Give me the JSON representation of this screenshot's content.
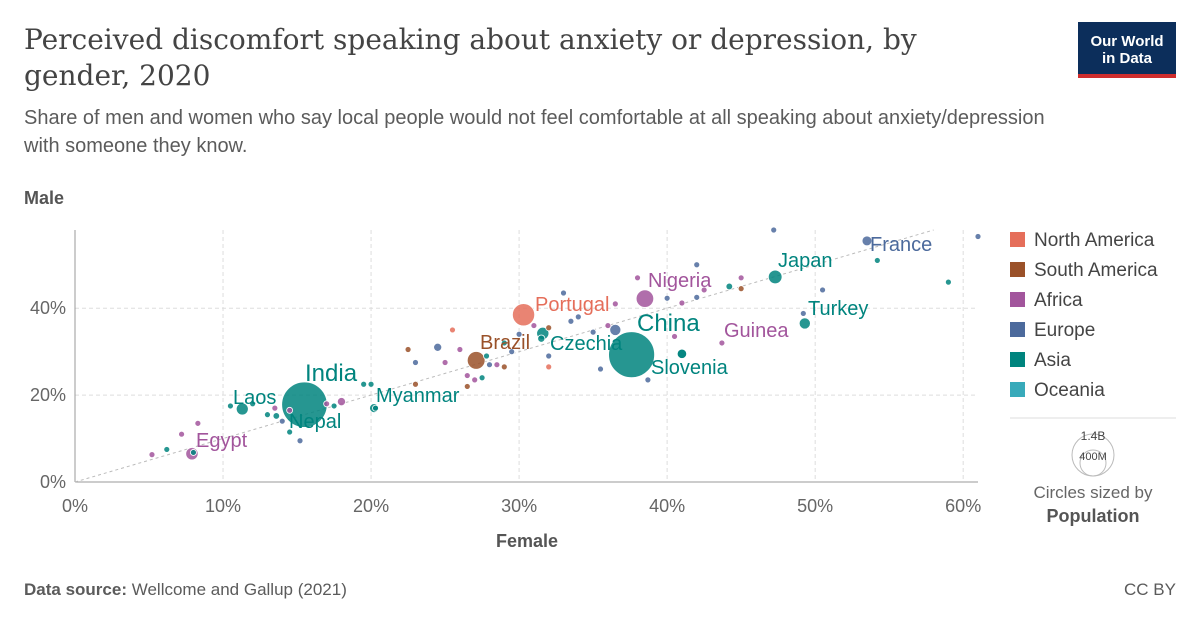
{
  "header": {
    "title": "Perceived discomfort speaking about anxiety or depression, by gender, 2020",
    "subtitle": "Share of men and women who say local people would not feel comfortable at all speaking about anxiety/depression with someone they know.",
    "logo_line1": "Our World",
    "logo_line2": "in Data"
  },
  "footer": {
    "source_label": "Data source:",
    "source_text": "Wellcome and Gallup (2021)",
    "license": "CC BY"
  },
  "colors": {
    "North America": "#e56e5a",
    "South America": "#9a5129",
    "Africa": "#a2559c",
    "Europe": "#4c6a9c",
    "Asia": "#00847e",
    "Oceania": "#38aaba"
  },
  "size_legend": {
    "big_label": "1.4B",
    "small_label": "400M",
    "caption": "Circles sized by",
    "caption_bold": "Population"
  },
  "chart_data": {
    "type": "scatter",
    "title": "Perceived discomfort speaking about anxiety or depression, by gender, 2020",
    "xlabel": "Female",
    "ylabel": "Male",
    "xlim": [
      0,
      61
    ],
    "ylim": [
      0,
      58
    ],
    "xticks": [
      "0%",
      "10%",
      "20%",
      "30%",
      "40%",
      "50%",
      "60%"
    ],
    "yticks": [
      "0%",
      "20%",
      "40%"
    ],
    "xtick_values": [
      0,
      10,
      20,
      30,
      40,
      50,
      60
    ],
    "ytick_values": [
      0,
      20,
      40
    ],
    "grid": true,
    "diagonal_reference_line": true,
    "legend": [
      "North America",
      "South America",
      "Africa",
      "Europe",
      "Asia",
      "Oceania"
    ],
    "legend_position": "right",
    "labeled_points": [
      {
        "label": "France",
        "region": "Europe",
        "x": 53.5,
        "y": 55.5,
        "pop_m": 65
      },
      {
        "label": "Japan",
        "region": "Asia",
        "x": 47.3,
        "y": 47.2,
        "pop_m": 126
      },
      {
        "label": "Nigeria",
        "region": "Africa",
        "x": 38.5,
        "y": 42.2,
        "pop_m": 206
      },
      {
        "label": "Turkey",
        "region": "Asia",
        "x": 49.3,
        "y": 36.5,
        "pop_m": 84
      },
      {
        "label": "Portugal",
        "region": "North America",
        "x": 30.3,
        "y": 38.5,
        "pop_m": 331
      },
      {
        "label": "China",
        "region": "Asia",
        "x": 37.6,
        "y": 29.3,
        "pop_m": 1411
      },
      {
        "label": "Guinea",
        "region": "Africa",
        "x": 40.5,
        "y": 33.5,
        "pop_m": 13
      },
      {
        "label": "Brazil",
        "region": "South America",
        "x": 27.1,
        "y": 28.0,
        "pop_m": 212
      },
      {
        "label": "Czechia",
        "region": "Asia",
        "x": 31.6,
        "y": 34.2,
        "pop_m": 100
      },
      {
        "label": "Slovenia",
        "region": "Asia",
        "x": 41.0,
        "y": 29.5,
        "pop_m": 60
      },
      {
        "label": "India",
        "region": "Asia",
        "x": 15.5,
        "y": 17.8,
        "pop_m": 1380
      },
      {
        "label": "Laos",
        "region": "Asia",
        "x": 11.3,
        "y": 16.8,
        "pop_m": 97
      },
      {
        "label": "Myanmar",
        "region": "Asia",
        "x": 20.2,
        "y": 17.0,
        "pop_m": 54
      },
      {
        "label": "Nepal",
        "region": "Asia",
        "x": 13.6,
        "y": 15.2,
        "pop_m": 29
      },
      {
        "label": "Egypt",
        "region": "Africa",
        "x": 7.9,
        "y": 6.5,
        "pop_m": 102
      }
    ],
    "other_points": [
      {
        "region": "Europe",
        "x": 47.2,
        "y": 58.0,
        "pop_m": 5
      },
      {
        "region": "Europe",
        "x": 61.0,
        "y": 56.5,
        "pop_m": 6
      },
      {
        "region": "Asia",
        "x": 54.2,
        "y": 51.0,
        "pop_m": 8
      },
      {
        "region": "Asia",
        "x": 59.0,
        "y": 46.0,
        "pop_m": 6
      },
      {
        "region": "Europe",
        "x": 50.5,
        "y": 44.2,
        "pop_m": 7
      },
      {
        "region": "Europe",
        "x": 49.2,
        "y": 38.8,
        "pop_m": 8
      },
      {
        "region": "Africa",
        "x": 45.0,
        "y": 47.0,
        "pop_m": 10
      },
      {
        "region": "South America",
        "x": 45.0,
        "y": 44.5,
        "pop_m": 8
      },
      {
        "region": "Asia",
        "x": 44.2,
        "y": 45.0,
        "pop_m": 30
      },
      {
        "region": "Europe",
        "x": 42.0,
        "y": 50.0,
        "pop_m": 6
      },
      {
        "region": "Africa",
        "x": 42.5,
        "y": 44.2,
        "pop_m": 6
      },
      {
        "region": "Europe",
        "x": 40.0,
        "y": 42.3,
        "pop_m": 8
      },
      {
        "region": "Africa",
        "x": 41.0,
        "y": 41.2,
        "pop_m": 8
      },
      {
        "region": "Europe",
        "x": 42.0,
        "y": 42.5,
        "pop_m": 5
      },
      {
        "region": "Africa",
        "x": 38.0,
        "y": 47.0,
        "pop_m": 7
      },
      {
        "region": "Africa",
        "x": 43.7,
        "y": 32.0,
        "pop_m": 8
      },
      {
        "region": "Europe",
        "x": 36.5,
        "y": 35.0,
        "pop_m": 83
      },
      {
        "region": "Europe",
        "x": 34.0,
        "y": 38.0,
        "pop_m": 10
      },
      {
        "region": "Europe",
        "x": 33.5,
        "y": 37.0,
        "pop_m": 18
      },
      {
        "region": "Africa",
        "x": 36.0,
        "y": 36.0,
        "pop_m": 6
      },
      {
        "region": "Europe",
        "x": 35.0,
        "y": 34.5,
        "pop_m": 10
      },
      {
        "region": "Europe",
        "x": 33.0,
        "y": 43.5,
        "pop_m": 5
      },
      {
        "region": "Europe",
        "x": 35.5,
        "y": 26.0,
        "pop_m": 10
      },
      {
        "region": "Europe",
        "x": 38.7,
        "y": 23.5,
        "pop_m": 9
      },
      {
        "region": "Africa",
        "x": 36.5,
        "y": 41.0,
        "pop_m": 6
      },
      {
        "region": "Africa",
        "x": 31.0,
        "y": 36.0,
        "pop_m": 8
      },
      {
        "region": "Asia",
        "x": 31.5,
        "y": 33.0,
        "pop_m": 35
      },
      {
        "region": "Europe",
        "x": 32.0,
        "y": 29.0,
        "pop_m": 9
      },
      {
        "region": "South America",
        "x": 32.0,
        "y": 35.5,
        "pop_m": 19
      },
      {
        "region": "North America",
        "x": 32.0,
        "y": 26.5,
        "pop_m": 5
      },
      {
        "region": "Europe",
        "x": 29.5,
        "y": 30.0,
        "pop_m": 7
      },
      {
        "region": "South America",
        "x": 29.0,
        "y": 26.5,
        "pop_m": 6
      },
      {
        "region": "Asia",
        "x": 29.0,
        "y": 32.0,
        "pop_m": 10
      },
      {
        "region": "Europe",
        "x": 30.0,
        "y": 34.0,
        "pop_m": 5
      },
      {
        "region": "North America",
        "x": 25.5,
        "y": 35.0,
        "pop_m": 5
      },
      {
        "region": "Africa",
        "x": 26.0,
        "y": 30.5,
        "pop_m": 10
      },
      {
        "region": "Europe",
        "x": 24.5,
        "y": 31.0,
        "pop_m": 44
      },
      {
        "region": "Africa",
        "x": 25.0,
        "y": 27.5,
        "pop_m": 6
      },
      {
        "region": "Asia",
        "x": 27.8,
        "y": 29.0,
        "pop_m": 17
      },
      {
        "region": "Asia",
        "x": 27.5,
        "y": 24.0,
        "pop_m": 5
      },
      {
        "region": "Africa",
        "x": 27.0,
        "y": 23.5,
        "pop_m": 5
      },
      {
        "region": "Europe",
        "x": 28.0,
        "y": 27.0,
        "pop_m": 5
      },
      {
        "region": "Africa",
        "x": 26.5,
        "y": 24.5,
        "pop_m": 6
      },
      {
        "region": "Africa",
        "x": 28.5,
        "y": 27.0,
        "pop_m": 7
      },
      {
        "region": "South America",
        "x": 22.5,
        "y": 30.5,
        "pop_m": 11
      },
      {
        "region": "Europe",
        "x": 23.0,
        "y": 27.5,
        "pop_m": 5
      },
      {
        "region": "South America",
        "x": 23.0,
        "y": 22.5,
        "pop_m": 6
      },
      {
        "region": "Asia",
        "x": 20.0,
        "y": 22.5,
        "pop_m": 12
      },
      {
        "region": "Asia",
        "x": 20.3,
        "y": 17.0,
        "pop_m": 8
      },
      {
        "region": "South America",
        "x": 26.5,
        "y": 22.0,
        "pop_m": 5
      },
      {
        "region": "Asia",
        "x": 19.5,
        "y": 22.5,
        "pop_m": 5
      },
      {
        "region": "Africa",
        "x": 18.0,
        "y": 18.5,
        "pop_m": 45
      },
      {
        "region": "Asia",
        "x": 17.5,
        "y": 17.5,
        "pop_m": 8
      },
      {
        "region": "Africa",
        "x": 17.0,
        "y": 18.0,
        "pop_m": 6
      },
      {
        "region": "Asia",
        "x": 13.0,
        "y": 15.5,
        "pop_m": 6
      },
      {
        "region": "Africa",
        "x": 13.5,
        "y": 17.0,
        "pop_m": 5
      },
      {
        "region": "Africa",
        "x": 14.5,
        "y": 16.5,
        "pop_m": 6
      },
      {
        "region": "Asia",
        "x": 10.5,
        "y": 17.5,
        "pop_m": 6
      },
      {
        "region": "Asia",
        "x": 12.0,
        "y": 18.0,
        "pop_m": 6
      },
      {
        "region": "Asia",
        "x": 14.5,
        "y": 11.5,
        "pop_m": 6
      },
      {
        "region": "Europe",
        "x": 14.0,
        "y": 14.0,
        "pop_m": 5
      },
      {
        "region": "Africa",
        "x": 8.3,
        "y": 13.5,
        "pop_m": 8
      },
      {
        "region": "Europe",
        "x": 15.2,
        "y": 9.5,
        "pop_m": 5
      },
      {
        "region": "Africa",
        "x": 7.2,
        "y": 11.0,
        "pop_m": 6
      },
      {
        "region": "Asia",
        "x": 8.0,
        "y": 6.8,
        "pop_m": 6
      },
      {
        "region": "Asia",
        "x": 6.2,
        "y": 7.5,
        "pop_m": 6
      },
      {
        "region": "Africa",
        "x": 5.2,
        "y": 6.3,
        "pop_m": 6
      },
      {
        "region": "Asia",
        "x": 41.0,
        "y": 29.5,
        "pop_m": 60
      }
    ]
  }
}
